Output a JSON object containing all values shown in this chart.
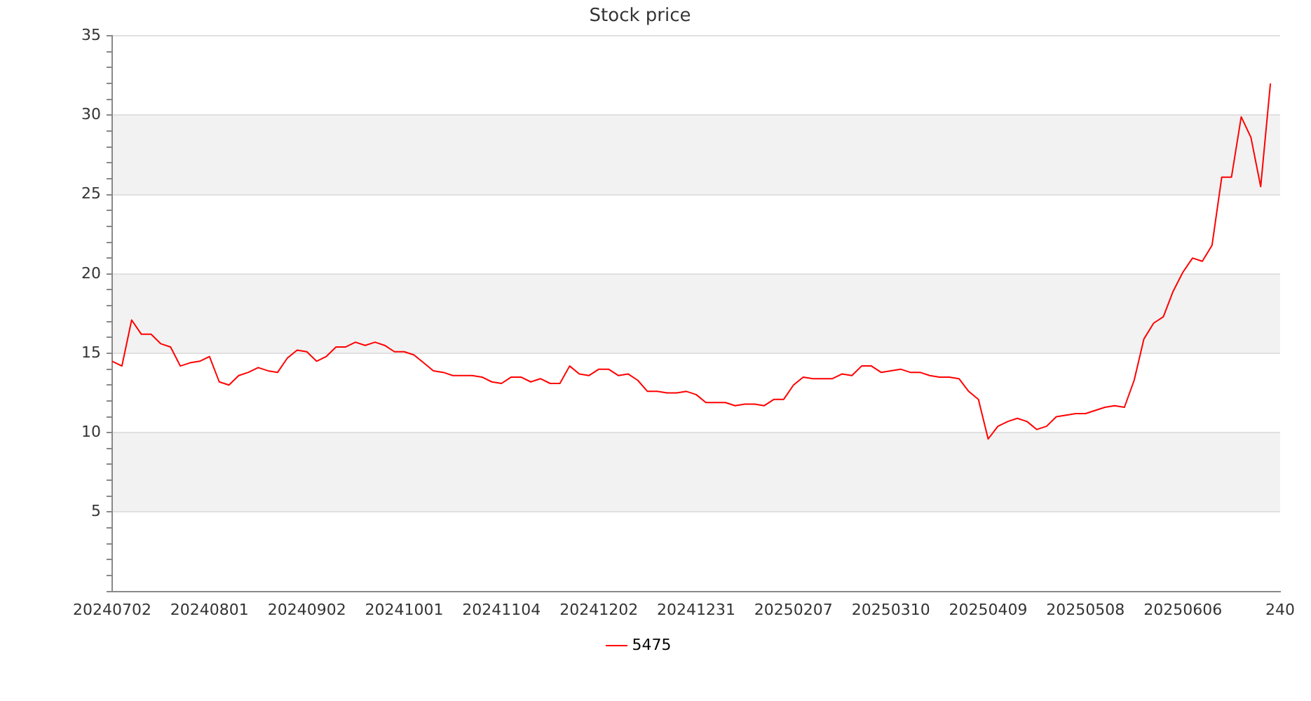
{
  "chart_data": {
    "type": "line",
    "title": "Stock price",
    "categories": [
      "20240702",
      null,
      null,
      null,
      null,
      null,
      null,
      null,
      null,
      null,
      "20240801",
      null,
      null,
      null,
      null,
      null,
      null,
      null,
      null,
      null,
      "20240902",
      null,
      null,
      null,
      null,
      null,
      null,
      null,
      null,
      null,
      "20241001",
      null,
      null,
      null,
      null,
      null,
      null,
      null,
      null,
      null,
      "20241104",
      null,
      null,
      null,
      null,
      null,
      null,
      null,
      null,
      null,
      "20241202",
      null,
      null,
      null,
      null,
      null,
      null,
      null,
      null,
      null,
      "20241231",
      null,
      null,
      null,
      null,
      null,
      null,
      null,
      null,
      null,
      "20250207",
      null,
      null,
      null,
      null,
      null,
      null,
      null,
      null,
      null,
      "20250310",
      null,
      null,
      null,
      null,
      null,
      null,
      null,
      null,
      null,
      "20250409",
      null,
      null,
      null,
      null,
      null,
      null,
      null,
      null,
      null,
      "20250508",
      null,
      null,
      null,
      null,
      null,
      null,
      null,
      null,
      null,
      "20250606",
      null,
      null,
      null,
      null,
      null,
      null,
      null,
      null,
      null,
      "240"
    ],
    "series": [
      {
        "name": "5475",
        "color": "#ff0000",
        "values": [
          14.5,
          14.2,
          17.1,
          16.2,
          16.2,
          15.6,
          15.4,
          14.2,
          14.4,
          14.5,
          14.8,
          13.2,
          13.0,
          13.6,
          13.8,
          14.1,
          13.9,
          13.8,
          14.7,
          15.2,
          15.1,
          14.5,
          14.8,
          15.4,
          15.4,
          15.7,
          15.5,
          15.7,
          15.5,
          15.1,
          15.1,
          14.9,
          14.4,
          13.9,
          13.8,
          13.6,
          13.6,
          13.6,
          13.5,
          13.2,
          13.1,
          13.5,
          13.5,
          13.2,
          13.4,
          13.1,
          13.1,
          14.2,
          13.7,
          13.6,
          14.0,
          14.0,
          13.6,
          13.7,
          13.3,
          12.6,
          12.6,
          12.5,
          12.5,
          12.6,
          12.4,
          11.9,
          11.9,
          11.9,
          11.7,
          11.8,
          11.8,
          11.7,
          12.1,
          12.1,
          13.0,
          13.5,
          13.4,
          13.4,
          13.4,
          13.7,
          13.6,
          14.2,
          14.2,
          13.8,
          13.9,
          14.0,
          13.8,
          13.8,
          13.6,
          13.5,
          13.5,
          13.4,
          12.6,
          12.1,
          9.6,
          10.4,
          10.7,
          10.9,
          10.7,
          10.2,
          10.4,
          11.0,
          11.1,
          11.2,
          11.2,
          11.4,
          11.6,
          11.7,
          11.6,
          13.3,
          15.9,
          16.9,
          17.3,
          18.9,
          20.1,
          21.0,
          20.8,
          21.8,
          26.1,
          26.1,
          29.9,
          28.6,
          25.5,
          32.0,
          null
        ]
      }
    ],
    "ylim": [
      0,
      35
    ],
    "yticks": [
      {
        "value": 0,
        "label": null
      },
      {
        "value": 1,
        "label": null
      },
      {
        "value": 2,
        "label": null
      },
      {
        "value": 3,
        "label": null
      },
      {
        "value": 4,
        "label": null
      },
      5,
      {
        "value": 6,
        "label": null
      },
      {
        "value": 7,
        "label": null
      },
      {
        "value": 8,
        "label": null
      },
      {
        "value": 9,
        "label": null
      },
      10,
      {
        "value": 11,
        "label": null
      },
      {
        "value": 12,
        "label": null
      },
      {
        "value": 13,
        "label": null
      },
      {
        "value": 14,
        "label": null
      },
      15,
      {
        "value": 16,
        "label": null
      },
      {
        "value": 17,
        "label": null
      },
      {
        "value": 18,
        "label": null
      },
      {
        "value": 19,
        "label": null
      },
      20,
      {
        "value": 21,
        "label": null
      },
      {
        "value": 22,
        "label": null
      },
      {
        "value": 23,
        "label": null
      },
      {
        "value": 24,
        "label": null
      },
      25,
      {
        "value": 26,
        "label": null
      },
      {
        "value": 27,
        "label": null
      },
      {
        "value": 28,
        "label": null
      },
      {
        "value": 29,
        "label": null
      },
      30,
      {
        "value": 31,
        "label": null
      },
      {
        "value": 32,
        "label": null
      },
      {
        "value": 33,
        "label": null
      },
      {
        "value": 34,
        "label": null
      },
      35
    ],
    "bands": [
      {
        "axis": "y",
        "from": 5,
        "to": 10,
        "color": "#f2f2f2"
      },
      {
        "axis": "y",
        "from": 15,
        "to": 20,
        "color": "#f2f2f2"
      },
      {
        "axis": "y",
        "from": 25,
        "to": 30,
        "color": "#f2f2f2"
      }
    ],
    "grid": "y",
    "legend": "bottom"
  }
}
